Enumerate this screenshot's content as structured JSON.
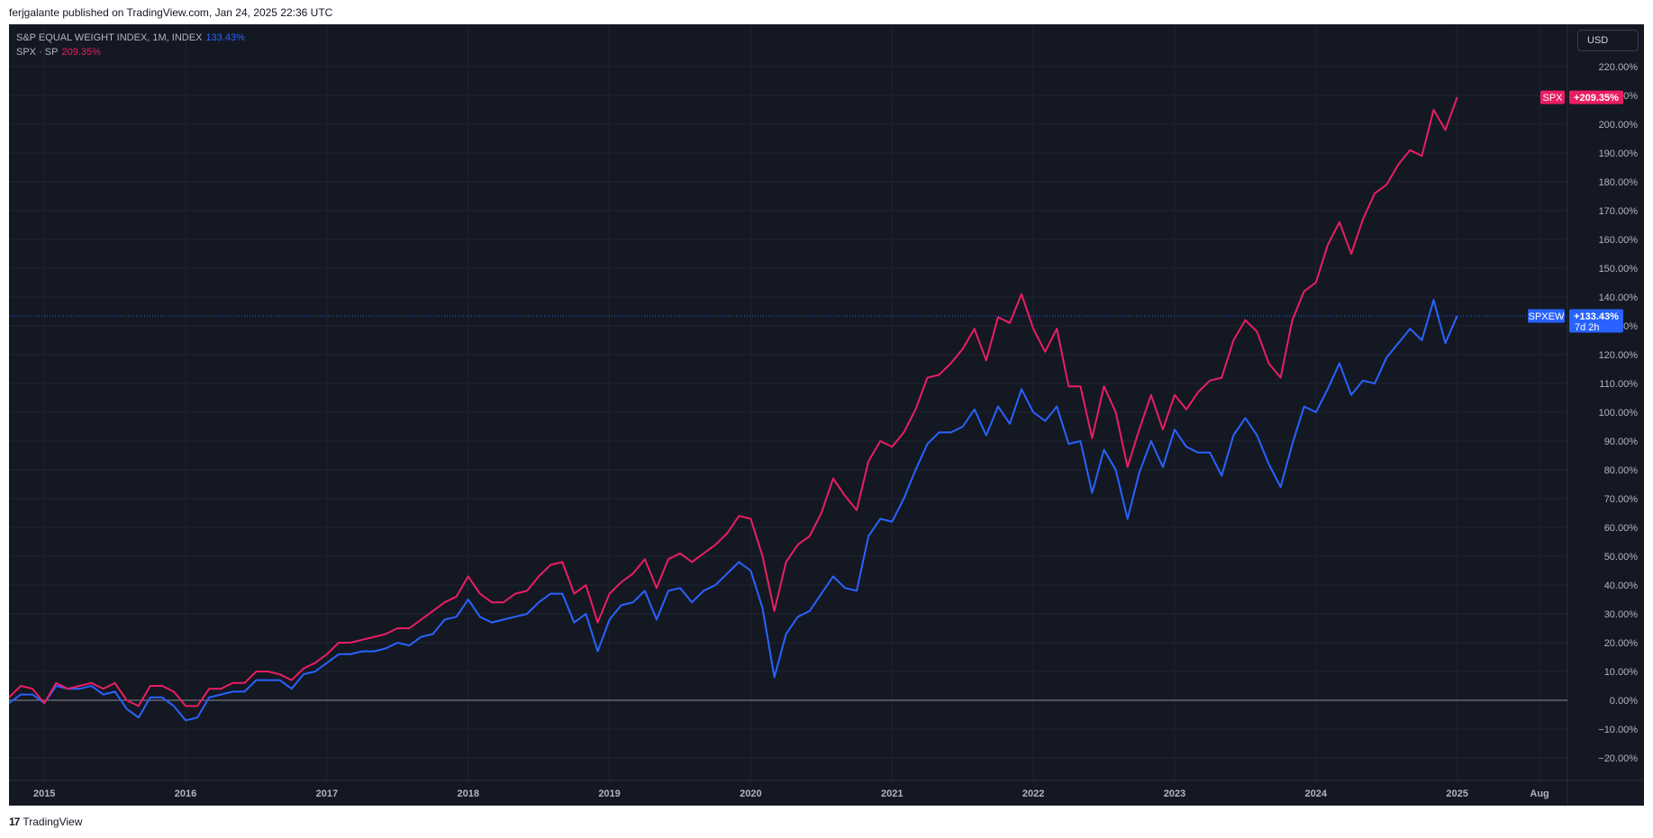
{
  "header": {
    "published_text": "ferjgalante published on TradingView.com, Jan 24, 2025 22:36 UTC"
  },
  "footer": {
    "logo_glyph": "17",
    "brand": "TradingView"
  },
  "currency_button": "USD",
  "legend": {
    "series1_label": "S&P EQUAL WEIGHT INDEX, 1M, INDEX",
    "series1_value": "133.43%",
    "series2_label": "SPX · SP",
    "series2_value": "209.35%"
  },
  "colors": {
    "background": "#141823",
    "spxew": "#2962ff",
    "spx": "#e91e63",
    "grid": "#1f2430",
    "axis_text": "#b2b5be"
  },
  "chart_data": {
    "type": "line",
    "x_start": "2014-10",
    "x_interval": "1M",
    "ylim": [
      -25,
      225
    ],
    "y_ticks": [
      -20,
      -10,
      0,
      10,
      20,
      30,
      40,
      50,
      60,
      70,
      80,
      90,
      100,
      110,
      120,
      130,
      140,
      150,
      160,
      170,
      180,
      190,
      200,
      210,
      220
    ],
    "y_tick_labels": [
      "−20.00%",
      "−10.00%",
      "0.00%",
      "10.00%",
      "20.00%",
      "30.00%",
      "40.00%",
      "50.00%",
      "60.00%",
      "70.00%",
      "80.00%",
      "90.00%",
      "100.00%",
      "110.00%",
      "120.00%",
      "130.00%",
      "140.00%",
      "150.00%",
      "160.00%",
      "170.00%",
      "180.00%",
      "190.00%",
      "200.00%",
      "210.00%",
      "220.00%"
    ],
    "x_tick_labels": [
      "2015",
      "2016",
      "2017",
      "2018",
      "2019",
      "2020",
      "2021",
      "2022",
      "2023",
      "2024",
      "2025",
      "Aug"
    ],
    "series": [
      {
        "name": "SPXEW",
        "color": "#2962ff",
        "values": [
          -1,
          2,
          2,
          -1,
          5,
          4,
          4,
          5,
          2,
          3,
          -3,
          -6,
          1,
          1,
          -2,
          -7,
          -6,
          1,
          2,
          3,
          3,
          7,
          7,
          7,
          4,
          9,
          10,
          13,
          16,
          16,
          17,
          17,
          18,
          20,
          19,
          22,
          23,
          28,
          29,
          35,
          29,
          27,
          28,
          29,
          30,
          34,
          37,
          37,
          27,
          30,
          17,
          28,
          33,
          34,
          38,
          28,
          38,
          39,
          34,
          38,
          40,
          44,
          48,
          45,
          32,
          8,
          23,
          29,
          31,
          37,
          43,
          39,
          38,
          57,
          63,
          62,
          70,
          80,
          89,
          93,
          93,
          95,
          101,
          92,
          102,
          96,
          108,
          100,
          97,
          102,
          89,
          90,
          72,
          87,
          80,
          63,
          79,
          90,
          81,
          94,
          88,
          86,
          86,
          78,
          92,
          98,
          92,
          82,
          74,
          89,
          102,
          100,
          108,
          117,
          106,
          111,
          110,
          119,
          124,
          129,
          125,
          139,
          124,
          133.43
        ]
      },
      {
        "name": "SPX",
        "color": "#e91e63",
        "values": [
          1,
          5,
          4,
          -1,
          6,
          4,
          5,
          6,
          4,
          6,
          0,
          -2,
          5,
          5,
          3,
          -2,
          -2,
          4,
          4,
          6,
          6,
          10,
          10,
          9,
          7,
          11,
          13,
          16,
          20,
          20,
          21,
          22,
          23,
          25,
          25,
          28,
          31,
          34,
          36,
          43,
          37,
          34,
          34,
          37,
          38,
          43,
          47,
          48,
          37,
          40,
          27,
          37,
          41,
          44,
          49,
          39,
          49,
          51,
          48,
          51,
          54,
          58,
          64,
          63,
          50,
          31,
          48,
          54,
          57,
          65,
          77,
          71,
          66,
          83,
          90,
          88,
          93,
          101,
          112,
          113,
          117,
          122,
          129,
          118,
          133,
          131,
          141,
          129,
          121,
          129,
          109,
          109,
          91,
          109,
          100,
          81,
          94,
          106,
          94,
          106,
          101,
          107,
          111,
          112,
          125,
          132,
          128,
          117,
          112,
          132,
          142,
          145,
          158,
          166,
          155,
          167,
          176,
          179,
          186,
          191,
          189,
          205,
          198,
          209.35
        ]
      }
    ],
    "markers": [
      {
        "name": "SPX",
        "text": "+209.35%",
        "color": "#e91e63"
      },
      {
        "name": "SPXEW",
        "text": "+133.43%",
        "sub": "7d 2h",
        "color": "#2962ff"
      }
    ],
    "grid": true,
    "zero_line": true,
    "current_value_line": 133.43
  }
}
